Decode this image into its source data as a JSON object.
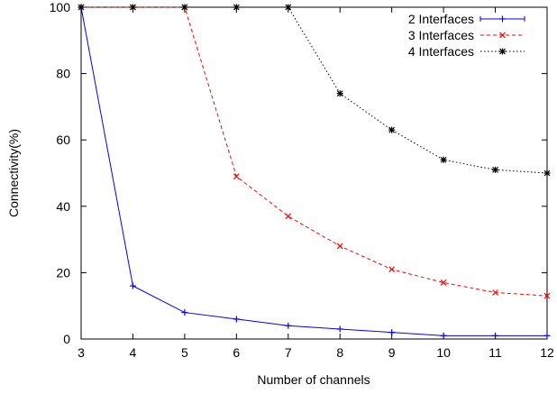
{
  "chart_data": {
    "type": "line",
    "title": "",
    "xlabel": "Number of channels",
    "ylabel": "Connectivity(%)",
    "xlim": [
      3,
      12
    ],
    "ylim": [
      0,
      100
    ],
    "xticks": [
      3,
      4,
      5,
      6,
      7,
      8,
      9,
      10,
      11,
      12
    ],
    "yticks": [
      0,
      20,
      40,
      60,
      80,
      100
    ],
    "grid": false,
    "legend_position": "top-right",
    "x": [
      3,
      4,
      5,
      6,
      7,
      8,
      9,
      10,
      11,
      12
    ],
    "series": [
      {
        "name": "2 Interfaces",
        "color": "#0000ff",
        "line_style": "solid",
        "marker": "plus",
        "values": [
          100,
          16,
          8,
          6,
          4,
          3,
          2,
          1,
          1,
          1
        ]
      },
      {
        "name": "3 Interfaces",
        "color": "#ff0000",
        "line_style": "dashed",
        "marker": "cross",
        "values": [
          100,
          100,
          100,
          49,
          37,
          28,
          21,
          17,
          14,
          13
        ]
      },
      {
        "name": "4 Interfaces",
        "color": "#000000",
        "line_style": "dotted",
        "marker": "star",
        "values": [
          100,
          100,
          100,
          100,
          100,
          74,
          63,
          54,
          51,
          50
        ]
      }
    ]
  }
}
